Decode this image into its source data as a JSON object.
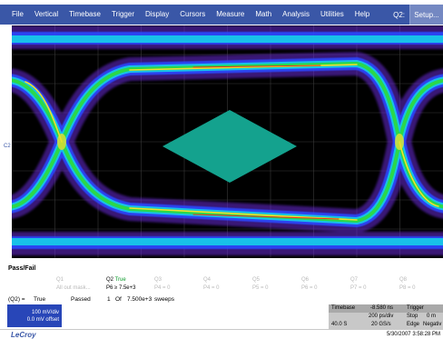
{
  "menubar": {
    "items": [
      "File",
      "Vertical",
      "Timebase",
      "Trigger",
      "Display",
      "Cursors",
      "Measure",
      "Math",
      "Analysis",
      "Utilities",
      "Help"
    ],
    "channel_label": "Q2:",
    "setup_label": "Setup..."
  },
  "screen": {
    "channel_marker": "C2",
    "colors": {
      "mask": "#14a28e",
      "background": "#000000",
      "grid": "#3d3d3d"
    }
  },
  "passfail": {
    "title": "Pass/Fail",
    "columns": [
      {
        "name": "Q1",
        "result": "",
        "detail": "All out mask..."
      },
      {
        "name": "Q2",
        "result": "True",
        "detail": "P6 ≥ 7.5e+3"
      },
      {
        "name": "Q3",
        "result": "",
        "detail": "P4 = 0"
      },
      {
        "name": "Q4",
        "result": "",
        "detail": "P4 = 0"
      },
      {
        "name": "Q5",
        "result": "",
        "detail": "P5 = 0"
      },
      {
        "name": "Q6",
        "result": "",
        "detail": "P6 = 0"
      },
      {
        "name": "Q7",
        "result": "",
        "detail": "P7 = 0"
      },
      {
        "name": "Q8",
        "result": "",
        "detail": "P8 = 0"
      }
    ],
    "summary": {
      "label": "(Q2) =",
      "value": "True",
      "status": "Passed",
      "count": "1",
      "of_text": "Of",
      "sweeps": "7.500e+3",
      "sweeps_label": "sweeps"
    }
  },
  "channel_box": {
    "volts_div": "100 mV/div",
    "offset": "0.0 mV offset"
  },
  "timebase": {
    "label": "Timebase",
    "delay": "-8.580 ns",
    "trigger_label": "Trigger",
    "time_div": "200 ps/div",
    "mode": "Stop",
    "trig_level": "0 m",
    "record": "40.0 S",
    "sample_rate": "20 GS/s",
    "trig_type": "Edge",
    "slope": "Negativ"
  },
  "footer": {
    "brand": "LeCroy",
    "datetime": "5/30/2007 3:58:28 PM"
  }
}
